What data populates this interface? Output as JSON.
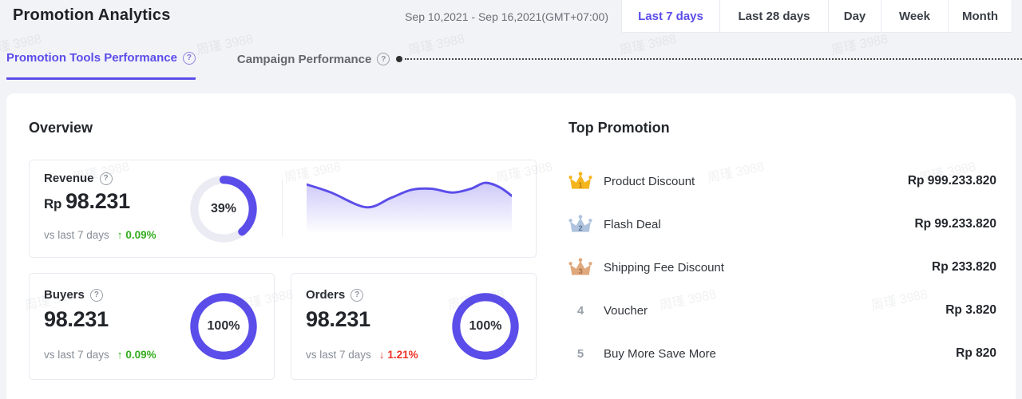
{
  "page": {
    "title": "Promotion Analytics",
    "date_range": "Sep 10,2021 - Sep 16,2021(GMT+07:00)"
  },
  "range_buttons": [
    {
      "label": "Last 7 days",
      "active": true
    },
    {
      "label": "Last 28 days",
      "active": false
    },
    {
      "label": "Day",
      "active": false
    },
    {
      "label": "Week",
      "active": false
    },
    {
      "label": "Month",
      "active": false
    }
  ],
  "tabs": [
    {
      "label": "Promotion Tools Performance",
      "active": true
    },
    {
      "label": "Campaign Performance",
      "active": false
    }
  ],
  "icons": {
    "help": "?",
    "arrow_up": "↑",
    "arrow_down": "↓"
  },
  "overview": {
    "heading": "Overview",
    "metrics": [
      {
        "name": "Revenue",
        "currency": "Rp",
        "value": "98.231",
        "compare_label": "vs last 7 days",
        "change": "0.09%",
        "direction": "up",
        "percent": 39,
        "percent_label": "39%"
      },
      {
        "name": "Buyers",
        "value": "98.231",
        "compare_label": "vs last 7 days",
        "change": "0.09%",
        "direction": "up",
        "percent": 100,
        "percent_label": "100%"
      },
      {
        "name": "Orders",
        "value": "98.231",
        "compare_label": "vs last 7 days",
        "change": "1.21%",
        "direction": "down",
        "percent": 100,
        "percent_label": "100%"
      }
    ]
  },
  "top_promotion": {
    "heading": "Top Promotion",
    "rows": [
      {
        "rank": "1",
        "medal": "gold",
        "label": "Product Discount",
        "amount": "Rp 999.233.820"
      },
      {
        "rank": "2",
        "medal": "silver",
        "label": "Flash Deal",
        "amount": "Rp 99.233.820"
      },
      {
        "rank": "3",
        "medal": "bronze",
        "label": "Shipping Fee Discount",
        "amount": "Rp 233.820"
      },
      {
        "rank": "4",
        "medal": "none",
        "label": "Voucher",
        "amount": "Rp 3.820"
      },
      {
        "rank": "5",
        "medal": "none",
        "label": "Buy More Save More",
        "amount": "Rp 820"
      }
    ]
  },
  "chart_data": [
    {
      "type": "area",
      "title": "Revenue last-7-days trend sparkline",
      "x": [
        0,
        12,
        29,
        41,
        51,
        61,
        71,
        80,
        87,
        94,
        100
      ],
      "y": [
        91,
        76,
        49,
        66,
        81,
        83,
        76,
        83,
        94,
        86,
        70
      ],
      "x_range": [
        0,
        100
      ],
      "y_range": [
        0,
        100
      ],
      "xlabel": "",
      "ylabel": "",
      "grid": false,
      "legend": false
    },
    {
      "type": "donut",
      "title": "Revenue progress",
      "value_percent": 39
    },
    {
      "type": "donut",
      "title": "Buyers progress",
      "value_percent": 100
    },
    {
      "type": "donut",
      "title": "Orders progress",
      "value_percent": 100
    }
  ],
  "watermark": {
    "text": "周瑾 3988"
  },
  "colors": {
    "accent": "#5B4DE9",
    "green": "#34AD1F",
    "red": "#ED3325",
    "gold": "#F5B51D",
    "gold_dark": "#BE7F17",
    "silver": "#AFC3DE",
    "silver_dark": "#5F7697",
    "bronze": "#E0A87D",
    "bronze_dark": "#A9744C",
    "rank_gray": "#9AA1AC",
    "track": "#EAEBF3",
    "border": "#E8EAF0",
    "page_bg": "#F2F3F7",
    "gray_text": "#6B7077",
    "muted": "#878D97",
    "title": "#1E2227",
    "dark": "#303030"
  }
}
